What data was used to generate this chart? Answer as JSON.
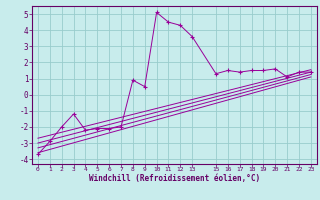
{
  "xlabel": "Windchill (Refroidissement éolien,°C)",
  "bg_color": "#c8ecec",
  "line_color": "#990099",
  "grid_color": "#99cccc",
  "axis_color": "#660066",
  "x_data": [
    0,
    1,
    2,
    3,
    4,
    5,
    6,
    7,
    8,
    9,
    10,
    11,
    12,
    13,
    15,
    16,
    17,
    18,
    19,
    20,
    21,
    22,
    23
  ],
  "y_scatter": [
    -3.7,
    -2.9,
    -2.0,
    -1.2,
    -2.2,
    -2.1,
    -2.1,
    -2.0,
    0.9,
    0.5,
    5.1,
    4.5,
    4.3,
    3.6,
    1.3,
    1.5,
    1.4,
    1.5,
    1.5,
    1.6,
    1.1,
    1.4,
    1.4
  ],
  "reg_lines": [
    {
      "x": [
        0,
        23
      ],
      "y": [
        -3.6,
        1.1
      ]
    },
    {
      "x": [
        0,
        23
      ],
      "y": [
        -3.3,
        1.25
      ]
    },
    {
      "x": [
        0,
        23
      ],
      "y": [
        -3.0,
        1.4
      ]
    },
    {
      "x": [
        0,
        23
      ],
      "y": [
        -2.7,
        1.55
      ]
    }
  ],
  "xlim": [
    -0.5,
    23.5
  ],
  "ylim": [
    -4.3,
    5.5
  ],
  "xtick_vals": [
    0,
    1,
    2,
    3,
    4,
    5,
    6,
    7,
    8,
    9,
    10,
    11,
    12,
    13,
    15,
    16,
    17,
    18,
    19,
    20,
    21,
    22,
    23
  ],
  "xtick_labels": [
    "0",
    "1",
    "2",
    "3",
    "4",
    "5",
    "6",
    "7",
    "8",
    "9",
    "10",
    "11",
    "12",
    "13",
    "15",
    "16",
    "17",
    "18",
    "19",
    "20",
    "21",
    "22",
    "23"
  ],
  "ytick_vals": [
    -4,
    -3,
    -2,
    -1,
    0,
    1,
    2,
    3,
    4,
    5
  ],
  "ytick_labels": [
    "-4",
    "-3",
    "-2",
    "-1",
    "0",
    "1",
    "2",
    "3",
    "4",
    "5"
  ],
  "figsize": [
    3.2,
    2.0
  ],
  "dpi": 100
}
